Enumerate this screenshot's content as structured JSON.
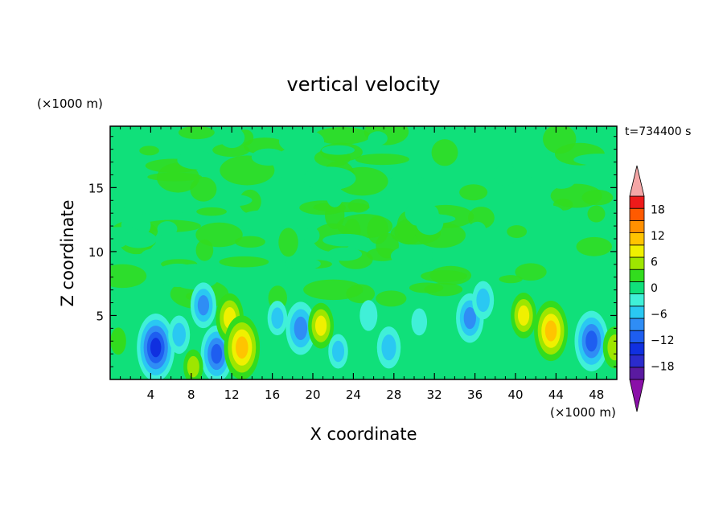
{
  "chart_data": {
    "type": "heatmap",
    "title": "vertical velocity",
    "time_label": "t=734400 s",
    "xlabel": "X coordinate",
    "ylabel": "Z coordinate",
    "x_unit": "(×1000 m)",
    "y_unit": "(×1000 m)",
    "xlim": [
      0,
      50
    ],
    "ylim": [
      0,
      19.8
    ],
    "x_ticks": [
      4,
      8,
      12,
      16,
      20,
      24,
      28,
      32,
      36,
      40,
      44,
      48
    ],
    "y_ticks": [
      5,
      10,
      15
    ],
    "colorbar": {
      "levels": [
        -21,
        -18,
        -15,
        -12,
        -9,
        -6,
        -3,
        0,
        3,
        6,
        9,
        12,
        15,
        18,
        21
      ],
      "tick_labels": [
        -18,
        -12,
        -6,
        0,
        6,
        12,
        18
      ],
      "colors": [
        "#5a1aa0",
        "#2b2bcc",
        "#1030e0",
        "#1e5ef0",
        "#2f8df5",
        "#2ac8f2",
        "#40f0d8",
        "#10e07a",
        "#32dc1e",
        "#9ee600",
        "#f0f000",
        "#ffc400",
        "#ff9000",
        "#ff5a00",
        "#ee1a1a"
      ],
      "under_color": "#8a0fa8",
      "over_color": "#f4a6a6"
    },
    "features": [
      {
        "x": 4.5,
        "z": 2.5,
        "w": -14
      },
      {
        "x": 6.8,
        "z": 3.5,
        "w": -6
      },
      {
        "x": 10.5,
        "z": 2.0,
        "w": -11
      },
      {
        "x": 9.2,
        "z": 5.8,
        "w": -8
      },
      {
        "x": 11.8,
        "z": 4.8,
        "w": 9
      },
      {
        "x": 13.0,
        "z": 2.5,
        "w": 13
      },
      {
        "x": 18.8,
        "z": 4.0,
        "w": -10
      },
      {
        "x": 16.5,
        "z": 4.8,
        "w": -5
      },
      {
        "x": 20.8,
        "z": 4.2,
        "w": 8
      },
      {
        "x": 22.5,
        "z": 2.2,
        "w": -5
      },
      {
        "x": 25.5,
        "z": 5.0,
        "w": -4
      },
      {
        "x": 27.5,
        "z": 2.5,
        "w": -7
      },
      {
        "x": 30.5,
        "z": 4.5,
        "w": -3
      },
      {
        "x": 35.5,
        "z": 4.8,
        "w": -9
      },
      {
        "x": 36.8,
        "z": 6.2,
        "w": -6
      },
      {
        "x": 40.8,
        "z": 5.0,
        "w": 8
      },
      {
        "x": 43.5,
        "z": 3.8,
        "w": 12
      },
      {
        "x": 47.5,
        "z": 3.0,
        "w": -12
      },
      {
        "x": 49.8,
        "z": 2.5,
        "w": 7
      },
      {
        "x": 0.8,
        "z": 3.0,
        "w": 3
      },
      {
        "x": 8.2,
        "z": 1.0,
        "w": 5
      }
    ]
  }
}
